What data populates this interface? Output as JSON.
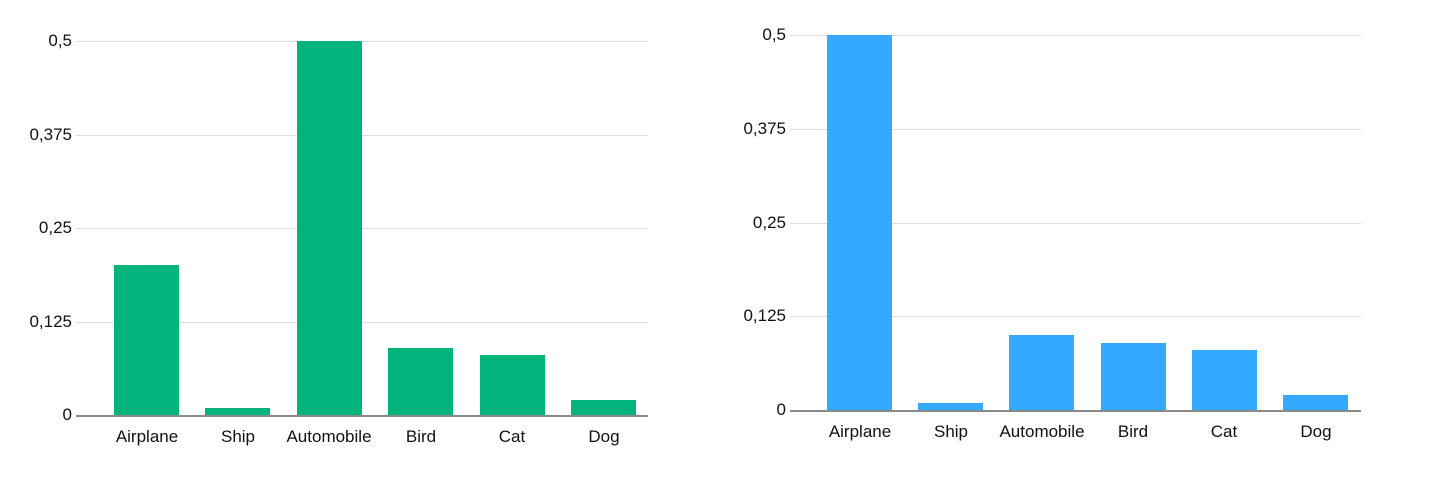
{
  "chart_data": [
    {
      "type": "bar",
      "title": "",
      "xlabel": "",
      "ylabel": "",
      "categories": [
        "Airplane",
        "Ship",
        "Automobile",
        "Bird",
        "Cat",
        "Dog"
      ],
      "values": [
        0.2,
        0.01,
        0.5,
        0.09,
        0.08,
        0.02
      ],
      "ylim": [
        0,
        0.5
      ],
      "yticks": [
        "0",
        "0,125",
        "0,25",
        "0,375",
        "0,5"
      ],
      "color": "#02B47C",
      "grid": true,
      "legend": null
    },
    {
      "type": "bar",
      "title": "",
      "xlabel": "",
      "ylabel": "",
      "categories": [
        "Airplane",
        "Ship",
        "Automobile",
        "Bird",
        "Cat",
        "Dog"
      ],
      "values": [
        0.5,
        0.01,
        0.1,
        0.09,
        0.08,
        0.02
      ],
      "ylim": [
        0,
        0.5
      ],
      "yticks": [
        "0",
        "0,125",
        "0,25",
        "0,375",
        "0,5"
      ],
      "color": "#33A9FF",
      "grid": true,
      "legend": null
    }
  ]
}
